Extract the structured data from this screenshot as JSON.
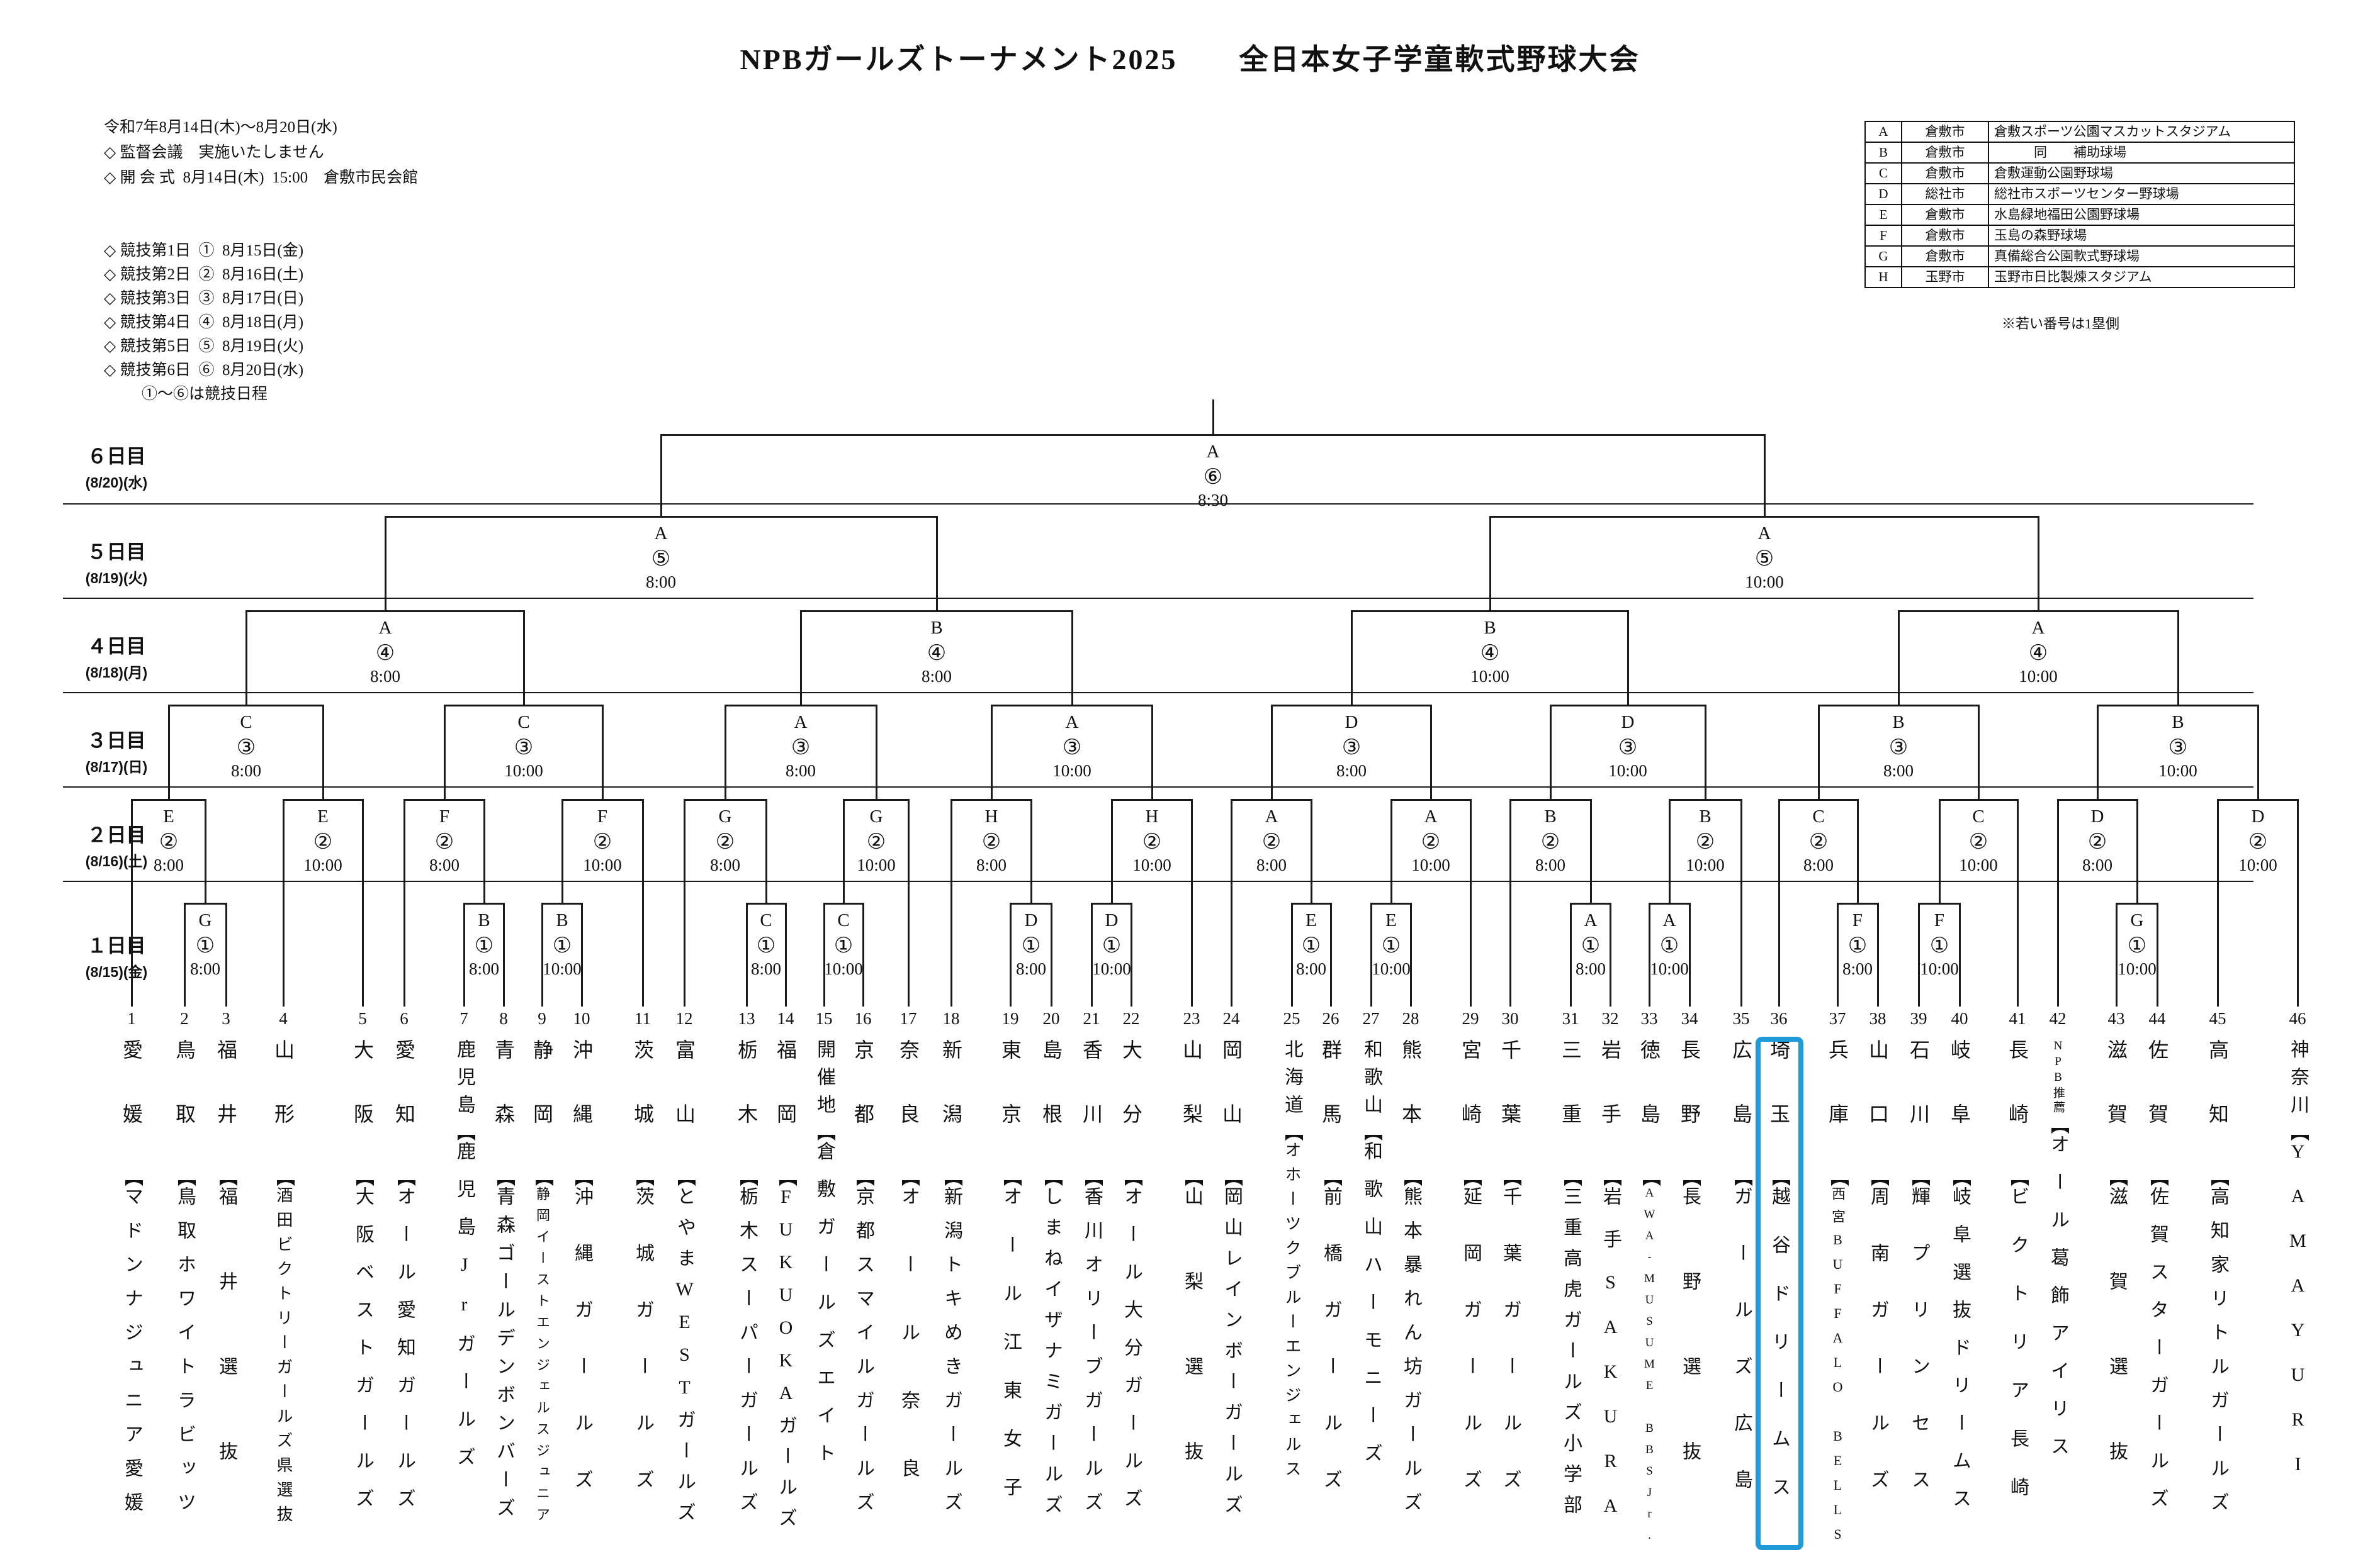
{
  "title": "NPBガールズトーナメント2025　　全日本女子学童軟式野球大会",
  "header_info": {
    "period": "令和7年8月14日(木)～8月20日(水)",
    "lines": [
      "◇ 監督会議　実施いたしません",
      "◇ 開 会 式  8月14日(木)  15:00　倉敷市民会館"
    ],
    "schedule": [
      "◇ 競技第1日  ①  8月15日(金)",
      "◇ 競技第2日  ②  8月16日(土)",
      "◇ 競技第3日  ③  8月17日(日)",
      "◇ 競技第4日  ④  8月18日(月)",
      "◇ 競技第5日  ⑤  8月19日(火)",
      "◇ 競技第6日  ⑥  8月20日(水)"
    ],
    "schedule_note": "①～⑥は競技日程"
  },
  "venue_table": {
    "rows": [
      {
        "code": "A",
        "city": "倉敷市",
        "name": "倉敷スポーツ公園マスカットスタジアム"
      },
      {
        "code": "B",
        "city": "倉敷市",
        "name": "　　　同　　補助球場"
      },
      {
        "code": "C",
        "city": "倉敷市",
        "name": "倉敷運動公園野球場"
      },
      {
        "code": "D",
        "city": "総社市",
        "name": "総社市スポーツセンター野球場"
      },
      {
        "code": "E",
        "city": "倉敷市",
        "name": "水島緑地福田公園野球場"
      },
      {
        "code": "F",
        "city": "倉敷市",
        "name": "玉島の森野球場"
      },
      {
        "code": "G",
        "city": "倉敷市",
        "name": "真備総合公園軟式野球場"
      },
      {
        "code": "H",
        "city": "玉野市",
        "name": "玉野市日比製煉スタジアム"
      }
    ],
    "note": "※若い番号は1塁側"
  },
  "day_bands": [
    {
      "label": "６日目",
      "date": "(8/20)(水)"
    },
    {
      "label": "５日目",
      "date": "(8/19)(火)"
    },
    {
      "label": "４日目",
      "date": "(8/18)(月)"
    },
    {
      "label": "３日目",
      "date": "(8/17)(日)"
    },
    {
      "label": "２日目",
      "date": "(8/16)(土)"
    },
    {
      "label": "１日目",
      "date": "(8/15)(金)"
    }
  ],
  "teams": [
    {
      "no": 1,
      "pref": "愛媛",
      "name": "マドンナジュニア愛媛"
    },
    {
      "no": 2,
      "pref": "鳥取",
      "name": "鳥取ホワイトラビッツ"
    },
    {
      "no": 3,
      "pref": "福井",
      "name": "福井選抜"
    },
    {
      "no": 4,
      "pref": "山形",
      "name": "酒田ビクトリーガールズ県選抜"
    },
    {
      "no": 5,
      "pref": "大阪",
      "name": "大阪ベストガールズ"
    },
    {
      "no": 6,
      "pref": "愛知",
      "name": "オール愛知ガールズ"
    },
    {
      "no": 7,
      "pref": "鹿児島",
      "name": "鹿児島Jrガールズ"
    },
    {
      "no": 8,
      "pref": "青森",
      "name": "青森ゴールデンボンバーズ"
    },
    {
      "no": 9,
      "pref": "静岡",
      "name": "静岡イーストエンジェルスジュニア"
    },
    {
      "no": 10,
      "pref": "沖縄",
      "name": "沖縄ガールズ"
    },
    {
      "no": 11,
      "pref": "茨城",
      "name": "茨城ガールズ"
    },
    {
      "no": 12,
      "pref": "富山",
      "name": "とやまWESTガールズ"
    },
    {
      "no": 13,
      "pref": "栃木",
      "name": "栃木スーパーガールズ"
    },
    {
      "no": 14,
      "pref": "福岡",
      "name": "FUKUOKAガールズ"
    },
    {
      "no": 15,
      "pref": "開催地",
      "name": "倉敷ガールズエイト"
    },
    {
      "no": 16,
      "pref": "京都",
      "name": "京都スマイルガールズ"
    },
    {
      "no": 17,
      "pref": "奈良",
      "name": "オール奈良"
    },
    {
      "no": 18,
      "pref": "新潟",
      "name": "新潟トキめきガールズ"
    },
    {
      "no": 19,
      "pref": "東京",
      "name": "オール江東女子"
    },
    {
      "no": 20,
      "pref": "島根",
      "name": "しまねイザナミガールズ"
    },
    {
      "no": 21,
      "pref": "香川",
      "name": "香川オリーブガールズ"
    },
    {
      "no": 22,
      "pref": "大分",
      "name": "オール大分ガールズ"
    },
    {
      "no": 23,
      "pref": "山梨",
      "name": "山梨選抜"
    },
    {
      "no": 24,
      "pref": "岡山",
      "name": "岡山レインボーガールズ"
    },
    {
      "no": 25,
      "pref": "北海道",
      "name": "オホーツクブルーエンジェルス"
    },
    {
      "no": 26,
      "pref": "群馬",
      "name": "前橋ガールズ"
    },
    {
      "no": 27,
      "pref": "和歌山",
      "name": "和歌山ハーモニーズ"
    },
    {
      "no": 28,
      "pref": "熊本",
      "name": "熊本暴れん坊ガールズ"
    },
    {
      "no": 29,
      "pref": "宮崎",
      "name": "延岡ガールズ"
    },
    {
      "no": 30,
      "pref": "千葉",
      "name": "千葉ガールズ"
    },
    {
      "no": 31,
      "pref": "三重",
      "name": "三重高虎ガールズ小学部"
    },
    {
      "no": 32,
      "pref": "岩手",
      "name": "岩手SAKURA"
    },
    {
      "no": 33,
      "pref": "徳島",
      "name": "AWA-MUSUME BBSJr."
    },
    {
      "no": 34,
      "pref": "長野",
      "name": "長野選抜"
    },
    {
      "no": 35,
      "pref": "広島",
      "name": "ガールズ広島"
    },
    {
      "no": 36,
      "pref": "埼玉",
      "name": "越谷ドリームス",
      "highlight": true
    },
    {
      "no": 37,
      "pref": "兵庫",
      "name": "西宮BUFFALO BELLS"
    },
    {
      "no": 38,
      "pref": "山口",
      "name": "周南ガールズ"
    },
    {
      "no": 39,
      "pref": "石川",
      "name": "輝プリンセス"
    },
    {
      "no": 40,
      "pref": "岐阜",
      "name": "岐阜選抜ドリームス"
    },
    {
      "no": 41,
      "pref": "長崎",
      "name": "ビクトリア長崎"
    },
    {
      "no": 42,
      "pref": "NPB推薦",
      "name": "オール葛飾アイリス"
    },
    {
      "no": 43,
      "pref": "滋賀",
      "name": "滋賀選抜"
    },
    {
      "no": 44,
      "pref": "佐賀",
      "name": "佐賀スターガールズ"
    },
    {
      "no": 45,
      "pref": "高知",
      "name": "高知家リトルガールズ"
    },
    {
      "no": 46,
      "pref": "神奈川",
      "name": "YAMAYURI"
    }
  ],
  "rounds": {
    "r1": [
      {
        "v": "G",
        "t": "8:00",
        "a": "T2",
        "b": "T3"
      },
      {
        "v": "B",
        "t": "8:00",
        "a": "T7",
        "b": "T8"
      },
      {
        "v": "B",
        "t": "10:00",
        "a": "T9",
        "b": "T10"
      },
      {
        "v": "C",
        "t": "8:00",
        "a": "T13",
        "b": "T14"
      },
      {
        "v": "C",
        "t": "10:00",
        "a": "T15",
        "b": "T16"
      },
      {
        "v": "D",
        "t": "8:00",
        "a": "T19",
        "b": "T20"
      },
      {
        "v": "D",
        "t": "10:00",
        "a": "T21",
        "b": "T22"
      },
      {
        "v": "E",
        "t": "8:00",
        "a": "T25",
        "b": "T26"
      },
      {
        "v": "E",
        "t": "10:00",
        "a": "T27",
        "b": "T28"
      },
      {
        "v": "A",
        "t": "8:00",
        "a": "T31",
        "b": "T32"
      },
      {
        "v": "A",
        "t": "10:00",
        "a": "T33",
        "b": "T34"
      },
      {
        "v": "F",
        "t": "8:00",
        "a": "T37",
        "b": "T38"
      },
      {
        "v": "F",
        "t": "10:00",
        "a": "T39",
        "b": "T40"
      },
      {
        "v": "G",
        "t": "10:00",
        "a": "T43",
        "b": "T44"
      }
    ],
    "r2": [
      {
        "v": "E",
        "t": "8:00",
        "a": "T1",
        "b": "R1.0"
      },
      {
        "v": "E",
        "t": "10:00",
        "a": "T4",
        "b": "T5"
      },
      {
        "v": "F",
        "t": "8:00",
        "a": "T6",
        "b": "R1.1"
      },
      {
        "v": "F",
        "t": "10:00",
        "a": "R1.2",
        "b": "T11"
      },
      {
        "v": "G",
        "t": "8:00",
        "a": "T12",
        "b": "R1.3"
      },
      {
        "v": "G",
        "t": "10:00",
        "a": "R1.4",
        "b": "T17"
      },
      {
        "v": "H",
        "t": "8:00",
        "a": "T18",
        "b": "R1.5"
      },
      {
        "v": "H",
        "t": "10:00",
        "a": "R1.6",
        "b": "T23"
      },
      {
        "v": "A",
        "t": "8:00",
        "a": "T24",
        "b": "R1.7"
      },
      {
        "v": "A",
        "t": "10:00",
        "a": "R1.8",
        "b": "T29"
      },
      {
        "v": "B",
        "t": "8:00",
        "a": "T30",
        "b": "R1.9"
      },
      {
        "v": "B",
        "t": "10:00",
        "a": "R1.10",
        "b": "T35"
      },
      {
        "v": "C",
        "t": "8:00",
        "a": "T36",
        "b": "R1.11"
      },
      {
        "v": "C",
        "t": "10:00",
        "a": "R1.12",
        "b": "T41"
      },
      {
        "v": "D",
        "t": "8:00",
        "a": "T42",
        "b": "R1.13"
      },
      {
        "v": "D",
        "t": "10:00",
        "a": "T45",
        "b": "T46"
      }
    ],
    "r3": [
      {
        "v": "C",
        "t": "8:00",
        "a": "R2.0",
        "b": "R2.1"
      },
      {
        "v": "C",
        "t": "10:00",
        "a": "R2.2",
        "b": "R2.3"
      },
      {
        "v": "A",
        "t": "8:00",
        "a": "R2.4",
        "b": "R2.5"
      },
      {
        "v": "A",
        "t": "10:00",
        "a": "R2.6",
        "b": "R2.7"
      },
      {
        "v": "D",
        "t": "8:00",
        "a": "R2.8",
        "b": "R2.9"
      },
      {
        "v": "D",
        "t": "10:00",
        "a": "R2.10",
        "b": "R2.11"
      },
      {
        "v": "B",
        "t": "8:00",
        "a": "R2.12",
        "b": "R2.13"
      },
      {
        "v": "B",
        "t": "10:00",
        "a": "R2.14",
        "b": "R2.15"
      }
    ],
    "r4": [
      {
        "v": "A",
        "t": "8:00",
        "a": "R3.0",
        "b": "R3.1"
      },
      {
        "v": "B",
        "t": "8:00",
        "a": "R3.2",
        "b": "R3.3"
      },
      {
        "v": "B",
        "t": "10:00",
        "a": "R3.4",
        "b": "R3.5"
      },
      {
        "v": "A",
        "t": "10:00",
        "a": "R3.6",
        "b": "R3.7"
      }
    ],
    "r5": [
      {
        "v": "A",
        "t": "8:00",
        "a": "R4.0",
        "b": "R4.1"
      },
      {
        "v": "A",
        "t": "10:00",
        "a": "R4.2",
        "b": "R4.3"
      }
    ],
    "r6": [
      {
        "v": "A",
        "t": "8:30",
        "a": "R5.0",
        "b": "R5.1"
      }
    ]
  },
  "circled_days": [
    "①",
    "②",
    "③",
    "④",
    "⑤",
    "⑥"
  ],
  "colors": {
    "highlight": "#1f9cd8",
    "line": "#1a1a1a"
  }
}
